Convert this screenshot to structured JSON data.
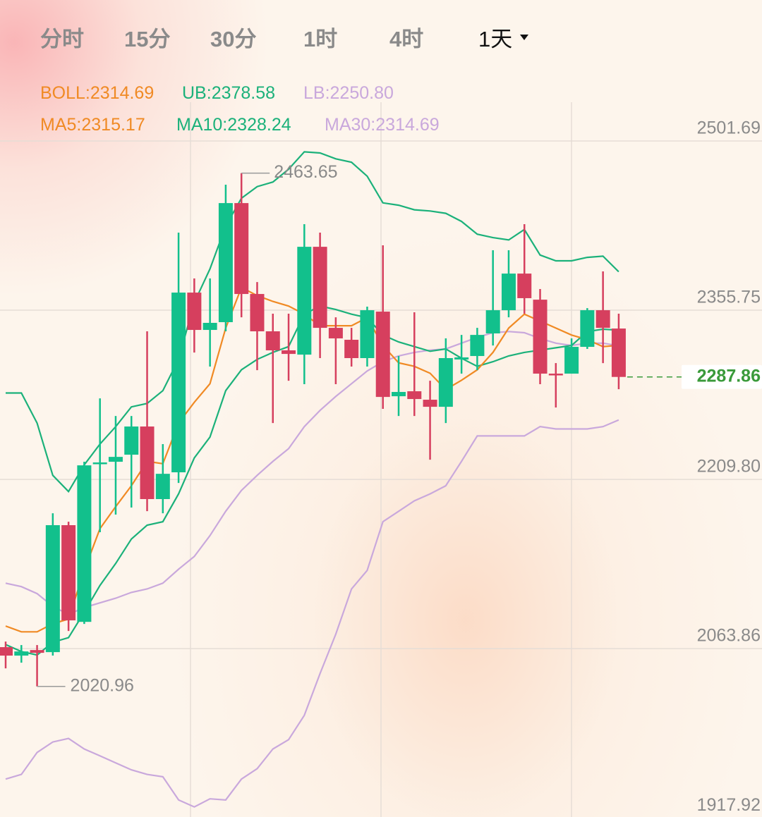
{
  "tabs": [
    "分时",
    "15分",
    "30分",
    "1时",
    "4时",
    "1天"
  ],
  "active_tab": 5,
  "chart_data": {
    "type": "candlestick",
    "indicators": [
      [
        {
          "label": "BOLL:",
          "value": 2314.69,
          "color": "#f08a24"
        },
        {
          "label": "UB:",
          "value": 2378.58,
          "color": "#1bb17a"
        },
        {
          "label": "LB:",
          "value": 2250.8,
          "value_label": "2250.80",
          "color": "#c9a8dc"
        }
      ],
      [
        {
          "label": "MA5:",
          "value": 2315.17,
          "color": "#f08a24"
        },
        {
          "label": "MA10:",
          "value": 2328.24,
          "color": "#1bb17a"
        },
        {
          "label": "MA30:",
          "value": 2314.69,
          "color": "#c9a8dc"
        }
      ]
    ],
    "up_color": "#12c08c",
    "down_color": "#d63f5e",
    "open": [
      2054.8,
      2047.5,
      2052.3,
      2050.5,
      2160.0,
      2076.6,
      2212.9,
      2214.7,
      2220.8,
      2245.1,
      2182.5,
      2205.6,
      2360.6,
      2328.4,
      2335.1,
      2437.8,
      2359.4,
      2327.2,
      2310.8,
      2307.1,
      2400.1,
      2330.2,
      2319.9,
      2304.1,
      2344.2,
      2271.2,
      2275.5,
      2268.2,
      2262.1,
      2302.9,
      2305.9,
      2325.4,
      2345.4,
      2377.0,
      2354.5,
      2290.7,
      2290.7,
      2313.8,
      2345.4,
      2329.6
    ],
    "close": [
      2047.5,
      2051.1,
      2049.9,
      2160.0,
      2077.9,
      2211.6,
      2214.1,
      2218.9,
      2245.1,
      2182.5,
      2204.3,
      2360.6,
      2328.4,
      2334.5,
      2437.8,
      2359.4,
      2327.2,
      2310.8,
      2307.7,
      2400.1,
      2330.2,
      2321.1,
      2304.1,
      2345.4,
      2270.6,
      2274.9,
      2268.8,
      2262.1,
      2304.1,
      2304.7,
      2324.1,
      2345.4,
      2377.0,
      2355.8,
      2290.7,
      2290.1,
      2313.8,
      2345.4,
      2330.2,
      2287.86
    ],
    "high": [
      2059.6,
      2056.6,
      2056.6,
      2170.3,
      2163.0,
      2214.7,
      2269.4,
      2254.2,
      2254.2,
      2327.2,
      2229.9,
      2412.3,
      2372.8,
      2372.8,
      2453.7,
      2463.65,
      2369.7,
      2342.4,
      2342.4,
      2419.6,
      2412.3,
      2339.3,
      2330.2,
      2348.5,
      2401.4,
      2305.9,
      2343.6,
      2284.6,
      2321.1,
      2324.1,
      2330.2,
      2397.1,
      2397.1,
      2419.6,
      2363.7,
      2299.8,
      2321.1,
      2347.2,
      2378.9,
      2342.4
    ],
    "low": [
      2036.5,
      2041.4,
      2020.96,
      2047.5,
      2068.7,
      2074.8,
      2153.9,
      2169.1,
      2175.2,
      2172.1,
      2170.3,
      2196.4,
      2308.9,
      2296.8,
      2327.2,
      2339.3,
      2293.7,
      2248.1,
      2284.6,
      2281.6,
      2304.1,
      2281.6,
      2296.8,
      2296.8,
      2260.3,
      2254.2,
      2254.2,
      2216.5,
      2248.1,
      2290.7,
      2293.7,
      2315.0,
      2339.3,
      2342.4,
      2281.6,
      2261.5,
      2290.7,
      2312.0,
      2299.8,
      2277.3
    ],
    "series": [
      {
        "color": "#1bb17a",
        "values": [
          2274,
          2274,
          2248,
          2203,
          2189,
          2212,
          2230,
          2245,
          2262,
          2265,
          2276,
          2303,
          2352,
          2381,
          2418,
          2442,
          2452,
          2456,
          2467,
          2482,
          2481,
          2476,
          2473,
          2461,
          2438,
          2436,
          2432,
          2431,
          2429,
          2422,
          2411,
          2408,
          2406,
          2415,
          2393,
          2388,
          2388,
          2391,
          2392,
          2378.58
        ]
      },
      {
        "color": "#c9a8dc",
        "values": [
          1941,
          1945,
          1964,
          1973,
          1976,
          1967,
          1961,
          1955,
          1949,
          1945,
          1943,
          1923,
          1917,
          1924,
          1923,
          1941,
          1950,
          1967,
          1975,
          1996,
          2032,
          2066,
          2105,
          2121,
          2163,
          2172,
          2181,
          2187,
          2194,
          2215,
          2237,
          2237,
          2237,
          2237,
          2245,
          2243,
          2243,
          2243,
          2245,
          2250.8
        ]
      },
      {
        "color": "#c9a8dc",
        "values": [
          2110,
          2107,
          2101,
          2090,
          2083,
          2089,
          2093,
          2097,
          2102,
          2105,
          2110,
          2122,
          2133,
          2151,
          2172,
          2190,
          2203,
          2215,
          2226,
          2245,
          2259,
          2271,
          2282,
          2293,
          2301,
          2306,
          2309,
          2311,
          2312,
          2317,
          2322,
          2326,
          2327,
          2326,
          2321,
          2317,
          2315,
          2317,
          2317,
          2314.69
        ]
      },
      {
        "color": "#1bb17a",
        "values": [
          2057,
          2051,
          2048,
          2059,
          2063,
          2085,
          2108,
          2127,
          2148,
          2160,
          2163,
          2187,
          2218,
          2236,
          2276,
          2294,
          2303,
          2309,
          2314,
          2342,
          2349,
          2346,
          2342,
          2339,
          2324,
          2318,
          2314,
          2310,
          2312,
          2304,
          2297,
          2301,
          2306,
          2309,
          2311,
          2313,
          2315,
          2327,
          2329,
          2328.24
        ]
      },
      {
        "color": "#f08a24",
        "values": [
          2073,
          2068,
          2068,
          2075,
          2079,
          2121,
          2157,
          2176,
          2194,
          2215,
          2213,
          2248,
          2266,
          2282,
          2330,
          2365,
          2358,
          2353,
          2349,
          2342,
          2332,
          2332,
          2332,
          2339,
          2315,
          2300,
          2297,
          2291,
          2277,
          2285,
          2294,
          2309,
          2330,
          2342,
          2336,
          2330,
          2324,
          2320,
          2314,
          2315.17
        ]
      }
    ],
    "ylim": [
      1908.3,
      2524.8
    ],
    "yticks": [
      2501.69,
      2355.75,
      {
        "value": 2209.8,
        "label": "2209.80"
      },
      2063.86,
      1917.92
    ],
    "grid": true,
    "last_price_color": "#3a9a3a"
  }
}
